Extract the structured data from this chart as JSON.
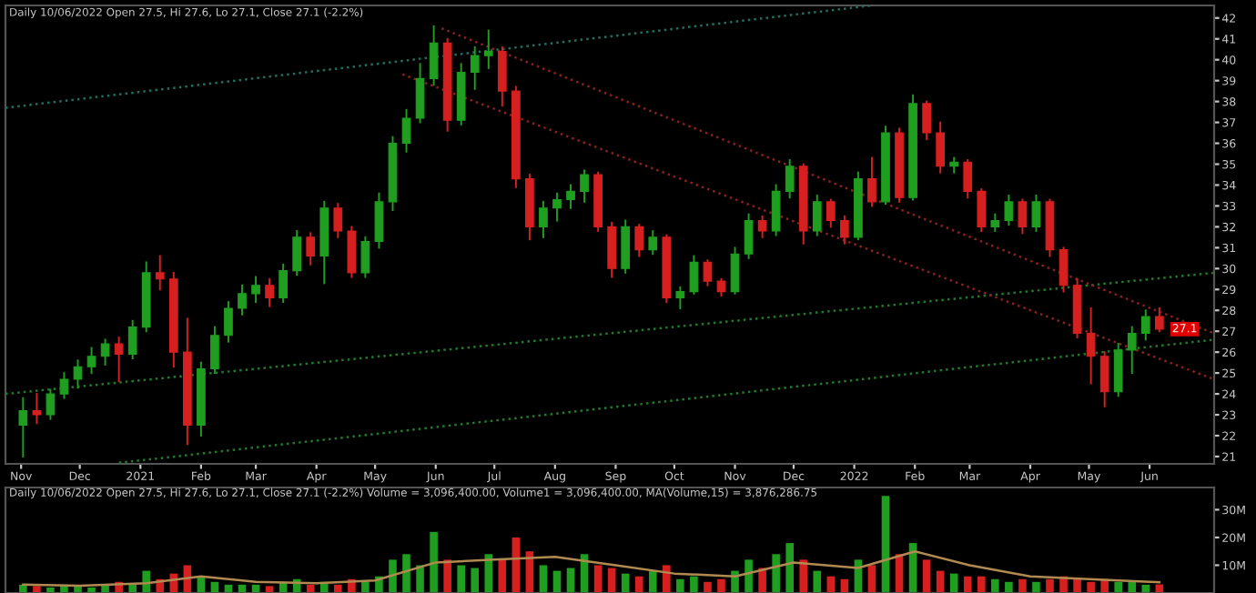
{
  "chart_data": [
    {
      "type": "candlestick",
      "title": "Daily 10/06/2022 Open 27.5, Hi 27.6, Lo 27.1, Close 27.1 (-2.2%)",
      "x": [
        "2020-11-02",
        "2020-11-09",
        "2020-11-16",
        "2020-11-23",
        "2020-11-30",
        "2020-12-07",
        "2020-12-14",
        "2020-12-21",
        "2020-12-28",
        "2021-01-04",
        "2021-01-11",
        "2021-01-18",
        "2021-01-25",
        "2021-02-01",
        "2021-02-08",
        "2021-02-15",
        "2021-02-22",
        "2021-03-01",
        "2021-03-08",
        "2021-03-15",
        "2021-03-22",
        "2021-03-29",
        "2021-04-05",
        "2021-04-12",
        "2021-04-19",
        "2021-04-26",
        "2021-05-03",
        "2021-05-10",
        "2021-05-17",
        "2021-05-24",
        "2021-05-31",
        "2021-06-07",
        "2021-06-14",
        "2021-06-21",
        "2021-06-28",
        "2021-07-05",
        "2021-07-12",
        "2021-07-19",
        "2021-07-26",
        "2021-08-02",
        "2021-08-09",
        "2021-08-16",
        "2021-08-23",
        "2021-08-30",
        "2021-09-06",
        "2021-09-13",
        "2021-09-20",
        "2021-09-27",
        "2021-10-04",
        "2021-10-11",
        "2021-10-18",
        "2021-10-25",
        "2021-11-01",
        "2021-11-08",
        "2021-11-15",
        "2021-11-22",
        "2021-11-29",
        "2021-12-06",
        "2021-12-13",
        "2021-12-20",
        "2021-12-27",
        "2022-01-03",
        "2022-01-10",
        "2022-01-17",
        "2022-01-24",
        "2022-01-31",
        "2022-02-07",
        "2022-02-14",
        "2022-02-21",
        "2022-02-28",
        "2022-03-07",
        "2022-03-14",
        "2022-03-21",
        "2022-03-28",
        "2022-04-04",
        "2022-04-11",
        "2022-04-18",
        "2022-04-25",
        "2022-05-02",
        "2022-05-09",
        "2022-05-16",
        "2022-05-23",
        "2022-05-30",
        "2022-06-06"
      ],
      "ohlc": [
        [
          22.5,
          23.8,
          21.0,
          23.2
        ],
        [
          23.2,
          24.0,
          22.6,
          23.0
        ],
        [
          23.0,
          24.2,
          22.8,
          24.0
        ],
        [
          24.0,
          25.0,
          23.8,
          24.7
        ],
        [
          24.7,
          25.6,
          24.3,
          25.3
        ],
        [
          25.3,
          26.2,
          25.0,
          25.8
        ],
        [
          25.8,
          26.6,
          25.4,
          26.4
        ],
        [
          26.4,
          26.7,
          24.6,
          25.9
        ],
        [
          25.9,
          27.5,
          25.7,
          27.2
        ],
        [
          27.2,
          30.3,
          27.0,
          29.8
        ],
        [
          29.8,
          30.6,
          29.0,
          29.5
        ],
        [
          29.5,
          29.8,
          25.3,
          26.0
        ],
        [
          26.0,
          27.6,
          21.6,
          22.5
        ],
        [
          22.5,
          25.5,
          22.0,
          25.2
        ],
        [
          25.2,
          27.2,
          25.0,
          26.8
        ],
        [
          26.8,
          28.4,
          26.5,
          28.1
        ],
        [
          28.1,
          29.2,
          27.8,
          28.8
        ],
        [
          28.8,
          29.6,
          28.4,
          29.2
        ],
        [
          29.2,
          29.5,
          28.2,
          28.6
        ],
        [
          28.6,
          30.2,
          28.4,
          29.9
        ],
        [
          29.9,
          31.8,
          29.7,
          31.5
        ],
        [
          31.5,
          31.7,
          30.2,
          30.6
        ],
        [
          30.6,
          33.2,
          29.3,
          32.9
        ],
        [
          32.9,
          33.1,
          31.5,
          31.8
        ],
        [
          31.8,
          32.0,
          29.6,
          29.8
        ],
        [
          29.8,
          31.5,
          29.6,
          31.3
        ],
        [
          31.3,
          33.6,
          31.0,
          33.2
        ],
        [
          33.2,
          36.3,
          32.8,
          36.0
        ],
        [
          36.0,
          37.6,
          35.6,
          37.2
        ],
        [
          37.2,
          39.8,
          37.0,
          39.1
        ],
        [
          39.1,
          41.6,
          38.8,
          40.8
        ],
        [
          40.8,
          41.0,
          36.6,
          37.1
        ],
        [
          37.1,
          39.8,
          36.9,
          39.4
        ],
        [
          39.4,
          40.6,
          38.6,
          40.2
        ],
        [
          40.2,
          41.4,
          39.6,
          40.4
        ],
        [
          40.4,
          40.6,
          37.8,
          38.5
        ],
        [
          38.5,
          38.7,
          33.9,
          34.3
        ],
        [
          34.3,
          34.5,
          31.4,
          32.0
        ],
        [
          32.0,
          33.2,
          31.5,
          32.9
        ],
        [
          32.9,
          33.6,
          32.3,
          33.3
        ],
        [
          33.3,
          34.0,
          32.9,
          33.7
        ],
        [
          33.7,
          34.7,
          33.2,
          34.5
        ],
        [
          34.5,
          34.6,
          31.8,
          32.0
        ],
        [
          32.0,
          32.2,
          29.6,
          30.0
        ],
        [
          30.0,
          32.3,
          29.8,
          32.0
        ],
        [
          32.0,
          32.1,
          30.6,
          30.9
        ],
        [
          30.9,
          31.8,
          30.7,
          31.5
        ],
        [
          31.5,
          31.6,
          28.4,
          28.6
        ],
        [
          28.6,
          29.1,
          28.1,
          28.9
        ],
        [
          28.9,
          30.6,
          28.8,
          30.3
        ],
        [
          30.3,
          30.4,
          29.2,
          29.4
        ],
        [
          29.4,
          29.5,
          28.7,
          28.9
        ],
        [
          28.9,
          31.0,
          28.8,
          30.7
        ],
        [
          30.7,
          32.6,
          30.5,
          32.3
        ],
        [
          32.3,
          32.5,
          31.5,
          31.8
        ],
        [
          31.8,
          34.0,
          31.6,
          33.7
        ],
        [
          33.7,
          35.2,
          33.4,
          34.9
        ],
        [
          34.9,
          35.0,
          31.2,
          31.8
        ],
        [
          31.8,
          33.5,
          31.6,
          33.2
        ],
        [
          33.2,
          33.3,
          32.0,
          32.3
        ],
        [
          32.3,
          32.5,
          31.2,
          31.5
        ],
        [
          31.5,
          34.6,
          31.4,
          34.3
        ],
        [
          34.3,
          35.3,
          33.0,
          33.2
        ],
        [
          33.2,
          36.8,
          33.1,
          36.5
        ],
        [
          36.5,
          36.7,
          33.2,
          33.4
        ],
        [
          33.4,
          38.3,
          33.3,
          37.9
        ],
        [
          37.9,
          38.0,
          36.2,
          36.5
        ],
        [
          36.5,
          37.0,
          34.6,
          34.9
        ],
        [
          34.9,
          35.3,
          34.6,
          35.1
        ],
        [
          35.1,
          35.2,
          33.4,
          33.7
        ],
        [
          33.7,
          33.8,
          31.8,
          32.0
        ],
        [
          32.0,
          32.6,
          31.8,
          32.3
        ],
        [
          32.3,
          33.5,
          32.1,
          33.2
        ],
        [
          33.2,
          33.3,
          31.7,
          32.0
        ],
        [
          32.0,
          33.5,
          31.8,
          33.2
        ],
        [
          33.2,
          33.3,
          30.6,
          30.9
        ],
        [
          30.9,
          31.0,
          28.9,
          29.2
        ],
        [
          29.2,
          29.5,
          26.7,
          26.9
        ],
        [
          26.9,
          28.1,
          24.5,
          25.8
        ],
        [
          25.8,
          26.0,
          23.4,
          24.1
        ],
        [
          24.1,
          26.4,
          23.9,
          26.1
        ],
        [
          26.1,
          27.2,
          25.0,
          26.9
        ],
        [
          26.9,
          28.0,
          26.6,
          27.7
        ],
        [
          27.7,
          28.1,
          27.0,
          27.1
        ]
      ],
      "colors": [
        "#1f9e1f",
        "#d62020",
        "#1f9e1f",
        "#1f9e1f",
        "#1f9e1f",
        "#1f9e1f",
        "#1f9e1f",
        "#d62020",
        "#1f9e1f",
        "#1f9e1f",
        "#d62020",
        "#d62020",
        "#d62020",
        "#1f9e1f",
        "#1f9e1f",
        "#1f9e1f",
        "#1f9e1f",
        "#1f9e1f",
        "#d62020",
        "#1f9e1f",
        "#1f9e1f",
        "#d62020",
        "#1f9e1f",
        "#d62020",
        "#d62020",
        "#1f9e1f",
        "#1f9e1f",
        "#1f9e1f",
        "#1f9e1f",
        "#1f9e1f",
        "#1f9e1f",
        "#d62020",
        "#1f9e1f",
        "#1f9e1f",
        "#1f9e1f",
        "#d62020",
        "#d62020",
        "#d62020",
        "#1f9e1f",
        "#1f9e1f",
        "#1f9e1f",
        "#1f9e1f",
        "#d62020",
        "#d62020",
        "#1f9e1f",
        "#d62020",
        "#1f9e1f",
        "#d62020",
        "#1f9e1f",
        "#1f9e1f",
        "#d62020",
        "#d62020",
        "#1f9e1f",
        "#1f9e1f",
        "#d62020",
        "#1f9e1f",
        "#1f9e1f",
        "#d62020",
        "#1f9e1f",
        "#d62020",
        "#d62020",
        "#1f9e1f",
        "#d62020",
        "#1f9e1f",
        "#d62020",
        "#1f9e1f",
        "#d62020",
        "#d62020",
        "#1f9e1f",
        "#d62020",
        "#d62020",
        "#1f9e1f",
        "#1f9e1f",
        "#d62020",
        "#1f9e1f",
        "#d62020",
        "#d62020",
        "#d62020",
        "#d62020",
        "#d62020",
        "#1f9e1f",
        "#1f9e1f",
        "#1f9e1f",
        "#d62020"
      ],
      "series": [
        {
          "type": "line",
          "x": [
            "2020-10-24",
            "2022-01-10"
          ],
          "values": [
            37.7,
            42.6
          ],
          "color": "#1f6f5f"
        },
        {
          "type": "line",
          "x": [
            "2020-10-24",
            "2022-07-04"
          ],
          "values": [
            24.0,
            29.8
          ],
          "color": "#1f7a2a"
        },
        {
          "type": "line",
          "x": [
            "2020-12-21",
            "2022-07-04"
          ],
          "values": [
            20.7,
            26.6
          ],
          "color": "#1f7a2a"
        },
        {
          "type": "line",
          "x": [
            "2021-06-04",
            "2022-07-04"
          ],
          "values": [
            41.5,
            26.9
          ],
          "color": "#8a2020"
        },
        {
          "type": "line",
          "x": [
            "2021-05-15",
            "2022-07-04"
          ],
          "values": [
            39.3,
            24.7
          ],
          "color": "#8a2020"
        }
      ],
      "line_style": "dotted",
      "annotations": [
        {
          "text": "27.1",
          "x": "2022-06-06",
          "y": 27.1
        }
      ],
      "xlim": [
        "2020-10-24",
        "2022-07-04"
      ],
      "xticks": [
        {
          "value": "2020-11-01",
          "label": "Nov"
        },
        {
          "value": "2020-12-01",
          "label": "Dec"
        },
        {
          "value": "2021-01-01",
          "label": "2021"
        },
        {
          "value": "2021-02-01",
          "label": "Feb"
        },
        {
          "value": "2021-03-01",
          "label": "Mar"
        },
        {
          "value": "2021-04-01",
          "label": "Apr"
        },
        {
          "value": "2021-05-01",
          "label": "May"
        },
        {
          "value": "2021-06-01",
          "label": "Jun"
        },
        {
          "value": "2021-07-01",
          "label": "Jul"
        },
        {
          "value": "2021-08-01",
          "label": "Aug"
        },
        {
          "value": "2021-09-01",
          "label": "Sep"
        },
        {
          "value": "2021-10-01",
          "label": "Oct"
        },
        {
          "value": "2021-11-01",
          "label": "Nov"
        },
        {
          "value": "2021-12-01",
          "label": "Dec"
        },
        {
          "value": "2022-01-01",
          "label": "2022"
        },
        {
          "value": "2022-02-01",
          "label": "Feb"
        },
        {
          "value": "2022-03-01",
          "label": "Mar"
        },
        {
          "value": "2022-04-01",
          "label": "Apr"
        },
        {
          "value": "2022-05-01",
          "label": "May"
        },
        {
          "value": "2022-06-01",
          "label": "Jun"
        }
      ],
      "ylim": [
        20.65,
        42.6
      ],
      "yticks": [
        21,
        22,
        23,
        24,
        25,
        26,
        27,
        28,
        29,
        30,
        31,
        32,
        33,
        34,
        35,
        36,
        37,
        38,
        39,
        40,
        41,
        42
      ],
      "grid": false
    },
    {
      "type": "bar",
      "title": "Daily 10/06/2022 Open 27.5, Hi 27.6, Lo 27.1, Close 27.1 (-2.2%) Volume = 3,096,400.00, Volume1 = 3,096,400.00, MA(Volume,15) = 3,876,286.75",
      "x": [
        "2020-11-02",
        "2020-11-09",
        "2020-11-16",
        "2020-11-23",
        "2020-11-30",
        "2020-12-07",
        "2020-12-14",
        "2020-12-21",
        "2020-12-28",
        "2021-01-04",
        "2021-01-11",
        "2021-01-18",
        "2021-01-25",
        "2021-02-01",
        "2021-02-08",
        "2021-02-15",
        "2021-02-22",
        "2021-03-01",
        "2021-03-08",
        "2021-03-15",
        "2021-03-22",
        "2021-03-29",
        "2021-04-05",
        "2021-04-12",
        "2021-04-19",
        "2021-04-26",
        "2021-05-03",
        "2021-05-10",
        "2021-05-17",
        "2021-05-24",
        "2021-05-31",
        "2021-06-07",
        "2021-06-14",
        "2021-06-21",
        "2021-06-28",
        "2021-07-05",
        "2021-07-12",
        "2021-07-19",
        "2021-07-26",
        "2021-08-02",
        "2021-08-09",
        "2021-08-16",
        "2021-08-23",
        "2021-08-30",
        "2021-09-06",
        "2021-09-13",
        "2021-09-20",
        "2021-09-27",
        "2021-10-04",
        "2021-10-11",
        "2021-10-18",
        "2021-10-25",
        "2021-11-01",
        "2021-11-08",
        "2021-11-15",
        "2021-11-22",
        "2021-11-29",
        "2021-12-06",
        "2021-12-13",
        "2021-12-20",
        "2021-12-27",
        "2022-01-03",
        "2022-01-10",
        "2022-01-17",
        "2022-01-24",
        "2022-01-31",
        "2022-02-07",
        "2022-02-14",
        "2022-02-21",
        "2022-02-28",
        "2022-03-07",
        "2022-03-14",
        "2022-03-21",
        "2022-03-28",
        "2022-04-04",
        "2022-04-11",
        "2022-04-18",
        "2022-04-25",
        "2022-05-02",
        "2022-05-09",
        "2022-05-16",
        "2022-05-23",
        "2022-05-30",
        "2022-06-06"
      ],
      "series": [
        {
          "type": "bar",
          "values": [
            3,
            2.5,
            2,
            3,
            2.5,
            2,
            3,
            4,
            3,
            8,
            5,
            7,
            10,
            6,
            4,
            3,
            3,
            3,
            2.5,
            4,
            5,
            3,
            4,
            3,
            5,
            4,
            6,
            12,
            14,
            10,
            22,
            12,
            10,
            9,
            14,
            12,
            20,
            15,
            10,
            8,
            9,
            14,
            10,
            9,
            7,
            6,
            8,
            10,
            5,
            6,
            4,
            5,
            8,
            12,
            9,
            14,
            18,
            12,
            8,
            6,
            5,
            12,
            10,
            35,
            14,
            18,
            12,
            8,
            7,
            6,
            6,
            5,
            4,
            5,
            4,
            5,
            6,
            5,
            4,
            5,
            4,
            4,
            3,
            3.1
          ],
          "colors": [
            "#1f9e1f",
            "#d62020",
            "#1f9e1f",
            "#1f9e1f",
            "#1f9e1f",
            "#1f9e1f",
            "#1f9e1f",
            "#d62020",
            "#1f9e1f",
            "#1f9e1f",
            "#d62020",
            "#d62020",
            "#d62020",
            "#1f9e1f",
            "#1f9e1f",
            "#1f9e1f",
            "#1f9e1f",
            "#1f9e1f",
            "#d62020",
            "#1f9e1f",
            "#1f9e1f",
            "#d62020",
            "#1f9e1f",
            "#d62020",
            "#d62020",
            "#1f9e1f",
            "#1f9e1f",
            "#1f9e1f",
            "#1f9e1f",
            "#1f9e1f",
            "#1f9e1f",
            "#d62020",
            "#1f9e1f",
            "#1f9e1f",
            "#1f9e1f",
            "#d62020",
            "#d62020",
            "#d62020",
            "#1f9e1f",
            "#1f9e1f",
            "#1f9e1f",
            "#1f9e1f",
            "#d62020",
            "#d62020",
            "#1f9e1f",
            "#d62020",
            "#1f9e1f",
            "#d62020",
            "#1f9e1f",
            "#1f9e1f",
            "#d62020",
            "#d62020",
            "#1f9e1f",
            "#1f9e1f",
            "#d62020",
            "#1f9e1f",
            "#1f9e1f",
            "#d62020",
            "#1f9e1f",
            "#d62020",
            "#d62020",
            "#1f9e1f",
            "#d62020",
            "#1f9e1f",
            "#d62020",
            "#1f9e1f",
            "#d62020",
            "#d62020",
            "#1f9e1f",
            "#d62020",
            "#d62020",
            "#1f9e1f",
            "#1f9e1f",
            "#d62020",
            "#1f9e1f",
            "#d62020",
            "#d62020",
            "#d62020",
            "#d62020",
            "#d62020",
            "#1f9e1f",
            "#1f9e1f",
            "#1f9e1f",
            "#d62020"
          ]
        },
        {
          "type": "line",
          "x": [
            "2020-11-02",
            "2020-12-01",
            "2021-01-04",
            "2021-02-01",
            "2021-03-01",
            "2021-04-01",
            "2021-05-01",
            "2021-06-01",
            "2021-07-01",
            "2021-08-01",
            "2021-09-01",
            "2021-10-01",
            "2021-11-01",
            "2021-12-01",
            "2022-01-03",
            "2022-02-01",
            "2022-03-01",
            "2022-04-01",
            "2022-05-01",
            "2022-06-01",
            "2022-06-06"
          ],
          "values": [
            3,
            2.6,
            3.5,
            6,
            4,
            3.5,
            4.5,
            11,
            12,
            13,
            10,
            7,
            6,
            11,
            9,
            15,
            10,
            6,
            5,
            4,
            3.9
          ],
          "color": "#b08a50"
        }
      ],
      "xlim": [
        "2020-10-24",
        "2022-07-04"
      ],
      "ylim": [
        0,
        38
      ],
      "yticks": [
        {
          "value": 10,
          "label": "10M"
        },
        {
          "value": 20,
          "label": "20M"
        },
        {
          "value": 30,
          "label": "30M"
        }
      ],
      "tick_labels": "y",
      "grid": false
    }
  ]
}
